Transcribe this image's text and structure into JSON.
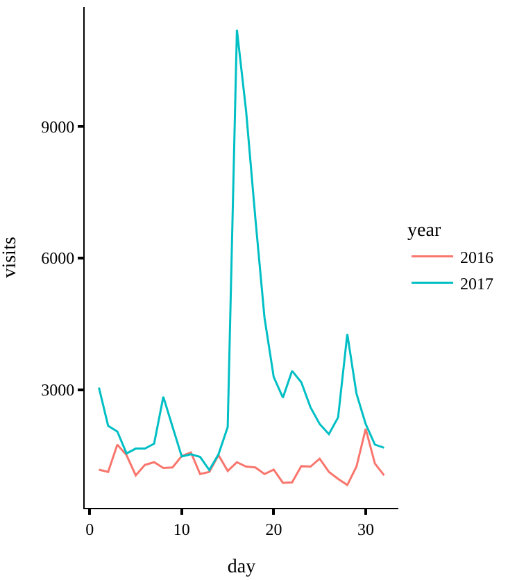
{
  "chart_data": {
    "type": "line",
    "xlabel": "day",
    "ylabel": "visits",
    "legend_title": "year",
    "legend": "right",
    "x": [
      1,
      2,
      3,
      4,
      5,
      6,
      7,
      8,
      9,
      10,
      11,
      12,
      13,
      14,
      15,
      16,
      17,
      18,
      19,
      20,
      21,
      22,
      23,
      24,
      25,
      26,
      27,
      28,
      29,
      30,
      31,
      32
    ],
    "series": [
      {
        "name": "2016",
        "color": "#f8766d",
        "values": [
          1180,
          1130,
          1750,
          1510,
          1050,
          1290,
          1350,
          1220,
          1230,
          1490,
          1570,
          1080,
          1130,
          1510,
          1150,
          1350,
          1250,
          1230,
          1080,
          1180,
          880,
          890,
          1260,
          1250,
          1430,
          1130,
          970,
          830,
          1250,
          2110,
          1320,
          1050
        ]
      },
      {
        "name": "2017",
        "color": "#00bfc4",
        "values": [
          3050,
          2180,
          2050,
          1550,
          1660,
          1660,
          1770,
          2840,
          2160,
          1480,
          1530,
          1470,
          1170,
          1530,
          2150,
          11200,
          9350,
          6920,
          4640,
          3290,
          2820,
          3430,
          3170,
          2600,
          2220,
          1990,
          2370,
          4270,
          2910,
          2220,
          1750,
          1680
        ]
      }
    ],
    "xlim": [
      -0.55,
      33.55
    ],
    "xticks": [
      0,
      10,
      20,
      30
    ],
    "ylim": [
      310,
      11720
    ],
    "yticks": [
      3000,
      6000,
      9000
    ]
  }
}
